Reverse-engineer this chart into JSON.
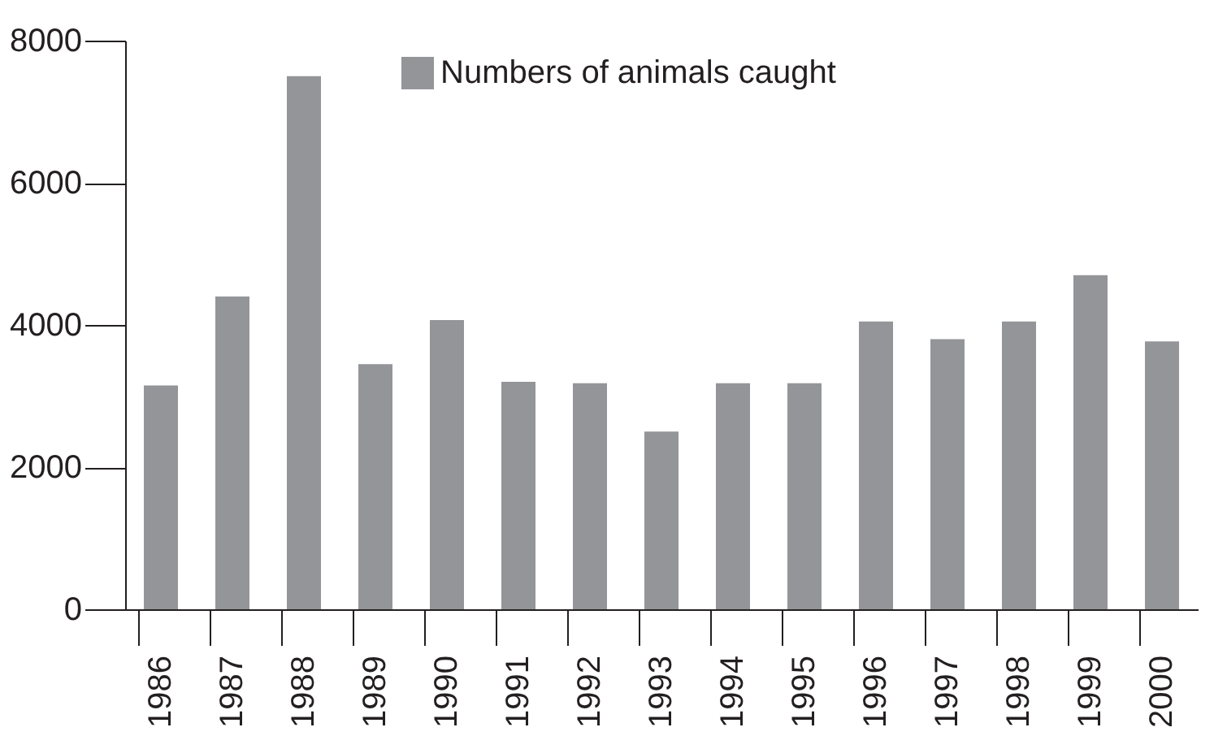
{
  "chart_data": {
    "type": "bar",
    "categories": [
      "1986",
      "1987",
      "1988",
      "1989",
      "1990",
      "1991",
      "1992",
      "1993",
      "1994",
      "1995",
      "1996",
      "1997",
      "1998",
      "1999",
      "2000"
    ],
    "series": [
      {
        "name": "Numbers of animals caught",
        "color": "#939598",
        "values": [
          3150,
          4400,
          7500,
          3450,
          4070,
          3200,
          3180,
          2500,
          3180,
          3180,
          4050,
          3800,
          4050,
          4700,
          3770
        ]
      }
    ],
    "ylim": [
      0,
      8000
    ],
    "yticks": [
      0,
      2000,
      4000,
      6000,
      8000
    ],
    "grid": false,
    "legend": "top left"
  }
}
